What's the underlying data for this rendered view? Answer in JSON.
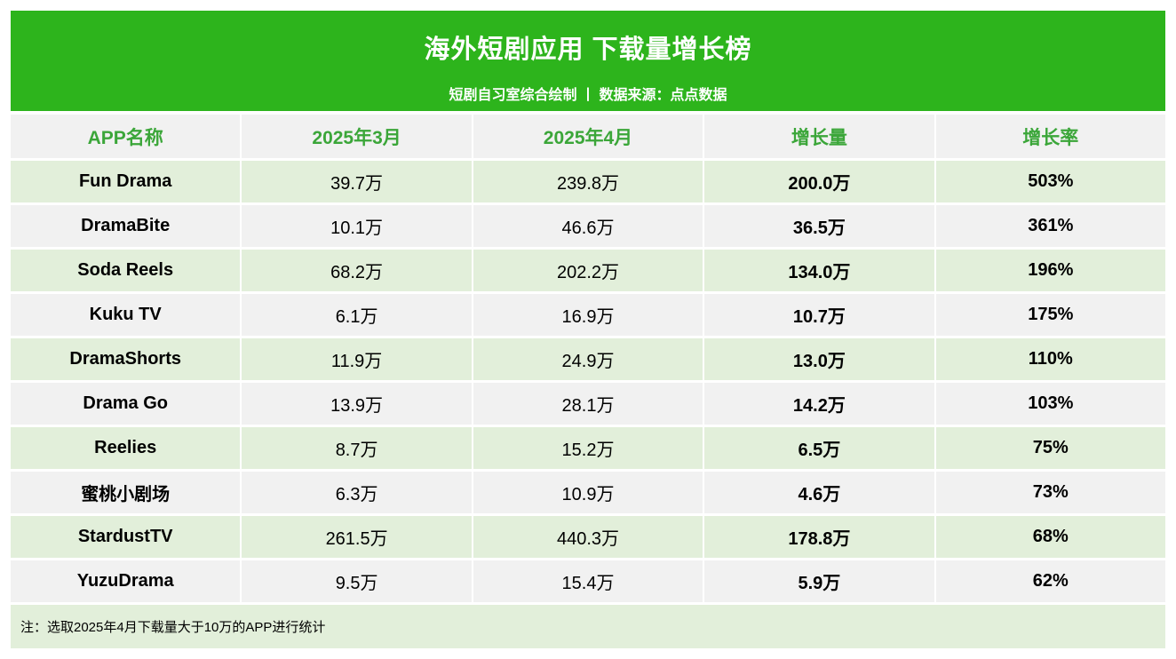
{
  "colors": {
    "banner_green": "#2db41c",
    "header_text_green": "#3ba639",
    "row_green": "#e2efda",
    "row_gray": "#f1f1f1",
    "banner_text": "#ffffff",
    "cell_text": "#000000"
  },
  "chart_data": {
    "type": "table",
    "title": "海外短剧应用 下载量增长榜",
    "subtitle": "短剧自习室综合绘制 丨 数据来源：点点数据",
    "columns": [
      "APP名称",
      "2025年3月",
      "2025年4月",
      "增长量",
      "增长率"
    ],
    "rows": [
      {
        "app": "Fun Drama",
        "mar": "39.7万",
        "apr": "239.8万",
        "growth": "200.0万",
        "rate": "503%"
      },
      {
        "app": "DramaBite",
        "mar": "10.1万",
        "apr": "46.6万",
        "growth": "36.5万",
        "rate": "361%"
      },
      {
        "app": "Soda Reels",
        "mar": "68.2万",
        "apr": "202.2万",
        "growth": "134.0万",
        "rate": "196%"
      },
      {
        "app": "Kuku TV",
        "mar": "6.1万",
        "apr": "16.9万",
        "growth": "10.7万",
        "rate": "175%"
      },
      {
        "app": "DramaShorts",
        "mar": "11.9万",
        "apr": "24.9万",
        "growth": "13.0万",
        "rate": "110%"
      },
      {
        "app": "Drama Go",
        "mar": "13.9万",
        "apr": "28.1万",
        "growth": "14.2万",
        "rate": "103%"
      },
      {
        "app": "Reelies",
        "mar": "8.7万",
        "apr": "15.2万",
        "growth": "6.5万",
        "rate": "75%"
      },
      {
        "app": "蜜桃小剧场",
        "mar": "6.3万",
        "apr": "10.9万",
        "growth": "4.6万",
        "rate": "73%"
      },
      {
        "app": "StardustTV",
        "mar": "261.5万",
        "apr": "440.3万",
        "growth": "178.8万",
        "rate": "68%"
      },
      {
        "app": "YuzuDrama",
        "mar": "9.5万",
        "apr": "15.4万",
        "growth": "5.9万",
        "rate": "62%"
      }
    ],
    "note": "注：选取2025年4月下载量大于10万的APP进行统计"
  }
}
